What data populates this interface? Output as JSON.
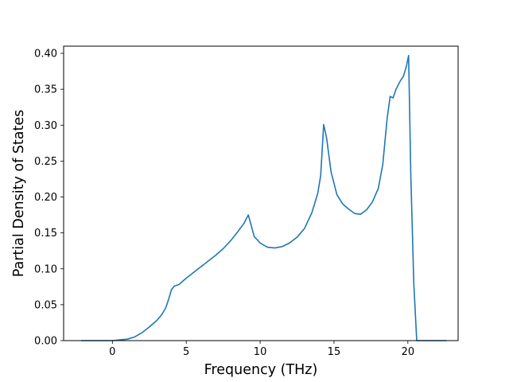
{
  "chart_data": {
    "type": "line",
    "title": "",
    "xlabel": "Frequency (THz)",
    "ylabel": "Partial Density of States",
    "xlim": [
      -3.3,
      23.4
    ],
    "ylim": [
      0.0,
      0.41
    ],
    "xticks": [
      0,
      5,
      10,
      15,
      20
    ],
    "xtick_labels": [
      "0",
      "5",
      "10",
      "15",
      "20"
    ],
    "yticks": [
      0.0,
      0.05,
      0.1,
      0.15,
      0.2,
      0.25,
      0.3,
      0.35,
      0.4
    ],
    "ytick_labels": [
      "0.00",
      "0.05",
      "0.10",
      "0.15",
      "0.20",
      "0.25",
      "0.30",
      "0.35",
      "0.40"
    ],
    "grid": false,
    "legend": false,
    "series": [
      {
        "color": "#1f77b4",
        "x": [
          -2.1,
          -1.0,
          0.0,
          0.5,
          1.0,
          1.5,
          2.0,
          2.5,
          3.0,
          3.3,
          3.6,
          3.8,
          4.0,
          4.2,
          4.5,
          5.0,
          5.5,
          6.0,
          6.5,
          7.0,
          7.5,
          8.0,
          8.5,
          8.9,
          9.2,
          9.4,
          9.6,
          10.0,
          10.5,
          11.0,
          11.5,
          12.0,
          12.5,
          13.0,
          13.5,
          13.9,
          14.1,
          14.3,
          14.5,
          14.8,
          15.2,
          15.6,
          16.0,
          16.4,
          16.8,
          17.2,
          17.6,
          18.0,
          18.3,
          18.6,
          18.8,
          19.0,
          19.2,
          19.5,
          19.7,
          19.9,
          20.05,
          20.2,
          20.4,
          20.6,
          21.0,
          22.6
        ],
        "y": [
          0.0,
          0.0,
          0.0,
          0.001,
          0.002,
          0.005,
          0.011,
          0.019,
          0.028,
          0.035,
          0.045,
          0.057,
          0.071,
          0.076,
          0.078,
          0.087,
          0.095,
          0.103,
          0.111,
          0.119,
          0.128,
          0.139,
          0.152,
          0.163,
          0.175,
          0.16,
          0.145,
          0.136,
          0.13,
          0.129,
          0.131,
          0.136,
          0.144,
          0.156,
          0.178,
          0.205,
          0.23,
          0.301,
          0.282,
          0.235,
          0.203,
          0.19,
          0.183,
          0.177,
          0.176,
          0.182,
          0.193,
          0.212,
          0.245,
          0.31,
          0.34,
          0.338,
          0.35,
          0.362,
          0.368,
          0.382,
          0.397,
          0.23,
          0.08,
          0.0,
          0.0,
          0.0
        ]
      }
    ]
  }
}
